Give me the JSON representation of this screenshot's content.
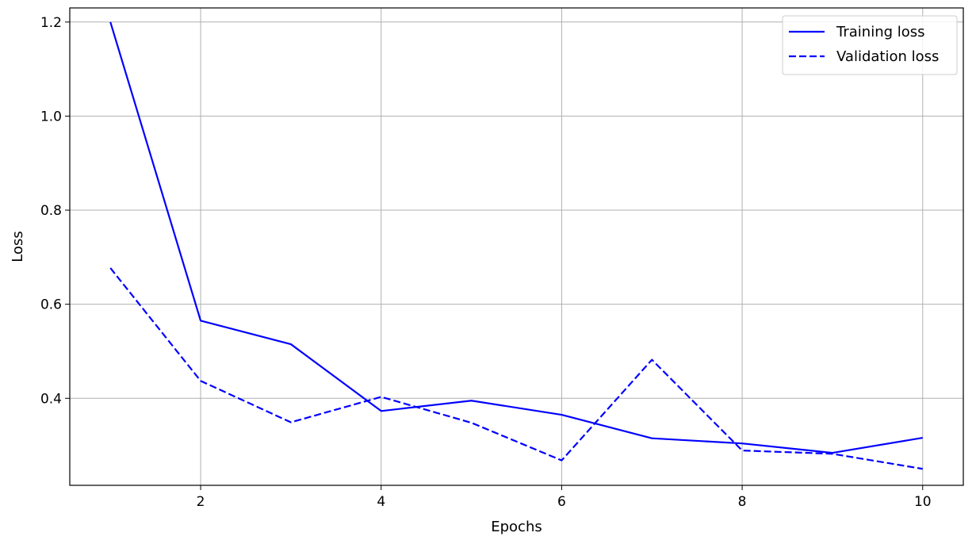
{
  "chart_data": {
    "type": "line",
    "title": "",
    "xlabel": "Epochs",
    "ylabel": "Loss",
    "x": [
      1,
      2,
      3,
      4,
      5,
      6,
      7,
      8,
      9,
      10
    ],
    "xlim": [
      0.55,
      10.45
    ],
    "ylim": [
      0.215,
      1.23
    ],
    "xticks": [
      2,
      4,
      6,
      8,
      10
    ],
    "xtick_labels": [
      "2",
      "4",
      "6",
      "8",
      "10"
    ],
    "yticks": [
      0.4,
      0.6,
      0.8,
      1.0,
      1.2
    ],
    "ytick_labels": [
      "0.4",
      "0.6",
      "0.8",
      "1.0",
      "1.2"
    ],
    "grid": true,
    "legend_position": "top-right",
    "series": [
      {
        "name": "Training loss",
        "style": "solid",
        "color": "#0000ff",
        "values": [
          1.2,
          0.565,
          0.515,
          0.373,
          0.395,
          0.365,
          0.315,
          0.304,
          0.284,
          0.316
        ]
      },
      {
        "name": "Validation loss",
        "style": "dashed",
        "color": "#0000ff",
        "values": [
          0.677,
          0.437,
          0.349,
          0.403,
          0.348,
          0.268,
          0.482,
          0.289,
          0.282,
          0.25
        ]
      }
    ]
  }
}
